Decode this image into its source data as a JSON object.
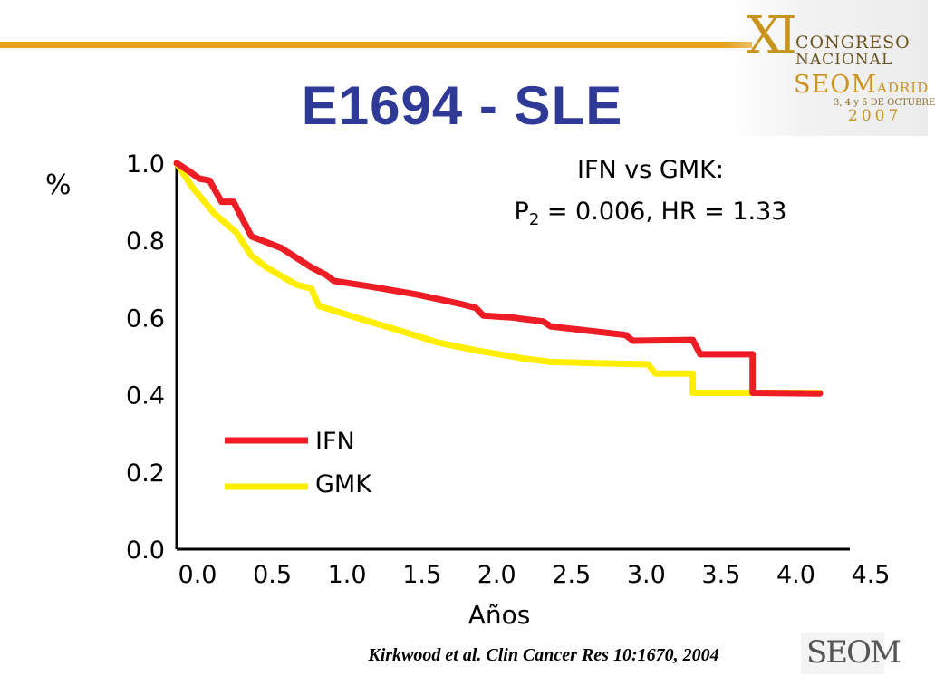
{
  "slide": {
    "title": "E1694 - SLE",
    "citation": "Kirkwood et al. Clin Cancer Res 10:1670, 2004"
  },
  "logo": {
    "mark": "XI",
    "line1": "CONGRESO",
    "line2": "NACIONAL",
    "line3": "SEOM",
    "line3b": "ADRID",
    "line4": "3, 4 y 5 DE OCTUBRE",
    "line5": "2007",
    "footer_mark": "SEOM"
  },
  "colors": {
    "title": "#2f3a96",
    "ifn": "#ee1c24",
    "gmk": "#ffee00",
    "accent_rule": "#e8a020"
  },
  "chart_data": {
    "type": "line",
    "title": "",
    "xlabel": "Años",
    "ylabel": "%",
    "xlim": [
      0,
      4.5
    ],
    "ylim": [
      0,
      1.0
    ],
    "x_ticks": [
      "0.0",
      "0.5",
      "1.0",
      "1.5",
      "2.0",
      "2.5",
      "3.0",
      "3.5",
      "4.0",
      "4.5"
    ],
    "y_ticks": [
      "0.0",
      "0.2",
      "0.4",
      "0.6",
      "0.8",
      "1.0"
    ],
    "annotation": {
      "line1": "IFN vs GMK:",
      "line2_prefix": "P",
      "line2_sub": "2",
      "line2_rest": " = 0.006, HR = 1.33"
    },
    "legend_position": "lower-left",
    "series": [
      {
        "name": "IFN",
        "color": "#ee1c24",
        "points": [
          [
            0.0,
            1.0
          ],
          [
            0.08,
            0.98
          ],
          [
            0.15,
            0.96
          ],
          [
            0.22,
            0.955
          ],
          [
            0.3,
            0.9
          ],
          [
            0.38,
            0.9
          ],
          [
            0.5,
            0.81
          ],
          [
            0.7,
            0.78
          ],
          [
            0.9,
            0.73
          ],
          [
            1.0,
            0.71
          ],
          [
            1.05,
            0.695
          ],
          [
            1.3,
            0.68
          ],
          [
            1.6,
            0.66
          ],
          [
            1.9,
            0.635
          ],
          [
            2.0,
            0.625
          ],
          [
            2.05,
            0.605
          ],
          [
            2.25,
            0.6
          ],
          [
            2.3,
            0.597
          ],
          [
            2.45,
            0.59
          ],
          [
            2.5,
            0.577
          ],
          [
            3.0,
            0.555
          ],
          [
            3.05,
            0.54
          ],
          [
            3.45,
            0.542
          ],
          [
            3.5,
            0.505
          ],
          [
            3.85,
            0.505
          ],
          [
            3.85,
            0.405
          ],
          [
            4.3,
            0.403
          ]
        ]
      },
      {
        "name": "GMK",
        "color": "#ffee00",
        "points": [
          [
            0.0,
            1.0
          ],
          [
            0.1,
            0.94
          ],
          [
            0.25,
            0.87
          ],
          [
            0.4,
            0.82
          ],
          [
            0.5,
            0.76
          ],
          [
            0.6,
            0.73
          ],
          [
            0.8,
            0.685
          ],
          [
            0.9,
            0.675
          ],
          [
            0.95,
            0.63
          ],
          [
            1.2,
            0.6
          ],
          [
            1.5,
            0.565
          ],
          [
            1.75,
            0.535
          ],
          [
            2.0,
            0.515
          ],
          [
            2.3,
            0.495
          ],
          [
            2.5,
            0.485
          ],
          [
            2.8,
            0.482
          ],
          [
            3.0,
            0.48
          ],
          [
            3.15,
            0.479
          ],
          [
            3.2,
            0.455
          ],
          [
            3.45,
            0.455
          ],
          [
            3.45,
            0.405
          ],
          [
            4.3,
            0.405
          ]
        ]
      }
    ]
  }
}
